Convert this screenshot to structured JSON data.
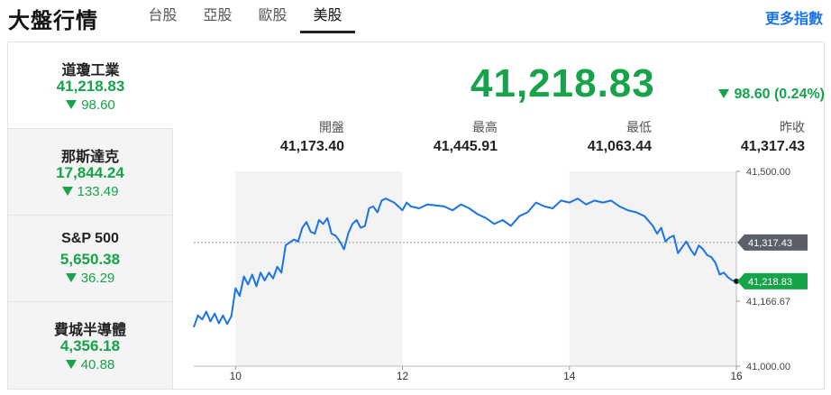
{
  "header": {
    "title": "大盤行情",
    "tabs": [
      {
        "label": "台股",
        "active": false
      },
      {
        "label": "亞股",
        "active": false
      },
      {
        "label": "歐股",
        "active": false
      },
      {
        "label": "美股",
        "active": true
      }
    ],
    "more_link": "更多指數"
  },
  "indices": [
    {
      "name": "道瓊工業",
      "price": "41,218.83",
      "change": "98.60",
      "direction": "down",
      "active": true
    },
    {
      "name": "那斯達克",
      "price": "17,844.24",
      "change": "133.49",
      "direction": "down",
      "active": false
    },
    {
      "name": "S&P 500",
      "price": "5,650.38",
      "change": "36.29",
      "direction": "down",
      "active": false
    },
    {
      "name": "費城半導體",
      "price": "4,356.18",
      "change": "40.88",
      "direction": "down",
      "active": false
    }
  ],
  "quote": {
    "price": "41,218.83",
    "change": "98.60 (0.24%)",
    "direction": "down",
    "stats": [
      {
        "label": "開盤",
        "value": "41,173.40"
      },
      {
        "label": "最高",
        "value": "41,445.91"
      },
      {
        "label": "最低",
        "value": "41,063.44"
      },
      {
        "label": "昨收",
        "value": "41,317.43"
      }
    ]
  },
  "colors": {
    "down": "#16a34a",
    "line": "#1a73e8",
    "accent": "#1a73e8"
  },
  "chart_data": {
    "type": "line",
    "x_ticks": [
      "10",
      "12",
      "14",
      "16"
    ],
    "y_ticks": [
      "41,500.00",
      "41,166.67",
      "41,000.00"
    ],
    "ylim": [
      41000,
      41500
    ],
    "xlim": [
      9.5,
      16
    ],
    "prev_close": 41317.43,
    "prev_close_label": "41,317.43",
    "last_label": "41,218.83",
    "shaded_hours": [
      [
        9.5,
        10
      ],
      [
        12,
        14
      ]
    ],
    "series": [
      {
        "x": [
          9.5,
          9.55,
          9.6,
          9.65,
          9.7,
          9.75,
          9.8,
          9.85,
          9.9,
          9.95,
          10.0,
          10.05,
          10.1,
          10.15,
          10.2,
          10.25,
          10.3,
          10.35,
          10.4,
          10.45,
          10.5,
          10.55,
          10.6,
          10.7,
          10.75,
          10.8,
          10.85,
          10.9,
          10.95,
          11.0,
          11.05,
          11.1,
          11.15,
          11.2,
          11.25,
          11.3,
          11.35,
          11.4,
          11.45,
          11.5,
          11.55,
          11.6,
          11.65,
          11.7,
          11.75,
          11.8,
          11.9,
          11.95,
          12.0,
          12.05,
          12.1,
          12.2,
          12.3,
          12.5,
          12.6,
          12.7,
          12.8,
          12.9,
          13.0,
          13.1,
          13.2,
          13.3,
          13.4,
          13.5,
          13.6,
          13.7,
          13.8,
          13.9,
          14.0,
          14.1,
          14.2,
          14.3,
          14.4,
          14.5,
          14.6,
          14.7,
          14.8,
          14.9,
          15.0,
          15.05,
          15.1,
          15.15,
          15.2,
          15.25,
          15.3,
          15.35,
          15.4,
          15.45,
          15.5,
          15.55,
          15.6,
          15.65,
          15.7,
          15.75,
          15.8,
          15.85,
          15.9,
          15.95,
          16.0
        ],
        "y": [
          41100,
          41130,
          41120,
          41140,
          41115,
          41135,
          41110,
          41130,
          41108,
          41128,
          41200,
          41180,
          41230,
          41210,
          41235,
          41205,
          41240,
          41220,
          41240,
          41225,
          41255,
          41240,
          41310,
          41325,
          41320,
          41355,
          41370,
          41345,
          41340,
          41375,
          41365,
          41380,
          41340,
          41335,
          41320,
          41300,
          41340,
          41365,
          41375,
          41355,
          41360,
          41405,
          41410,
          41395,
          41425,
          41430,
          41420,
          41410,
          41400,
          41420,
          41410,
          41405,
          41415,
          41410,
          41400,
          41415,
          41405,
          41390,
          41380,
          41365,
          41375,
          41360,
          41385,
          41395,
          41420,
          41410,
          41405,
          41425,
          41420,
          41430,
          41415,
          41425,
          41420,
          41425,
          41410,
          41400,
          41395,
          41385,
          41360,
          41340,
          41355,
          41320,
          41330,
          41335,
          41290,
          41305,
          41320,
          41300,
          41285,
          41310,
          41300,
          41285,
          41280,
          41265,
          41235,
          41240,
          41228,
          41220,
          41218
        ]
      }
    ]
  }
}
